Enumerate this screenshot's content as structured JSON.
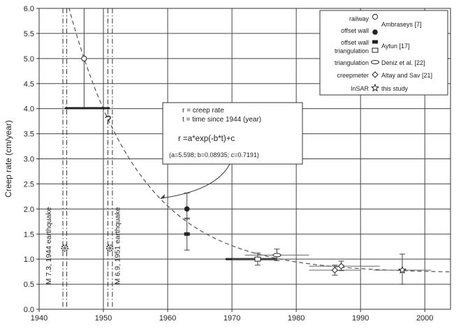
{
  "chart_data": {
    "type": "scatter",
    "ylabel": "Creep rate (cm/year)",
    "xlim": [
      1940,
      2004
    ],
    "ylim": [
      0,
      6
    ],
    "grid": true,
    "legend_position": "top-right",
    "x_ticks": [
      "1940",
      "1950",
      "1960",
      "1970",
      "1980",
      "1990",
      "2000"
    ],
    "y_ticks": [
      "0.0",
      "0.5",
      "1.0",
      "1.5",
      "2.0",
      "2.5",
      "3.0",
      "3.5",
      "4.0",
      "4.5",
      "5.0",
      "5.5",
      "6.0"
    ],
    "legend": [
      {
        "left": "railway",
        "right": "",
        "marker": "open-circle"
      },
      {
        "left": "offset wall",
        "right": "Ambraseys [7]",
        "marker": "filled-circle"
      },
      {
        "left": "offset wall",
        "right": "Aytun [17]",
        "marker": "filled-rect"
      },
      {
        "left": "triangulation",
        "right": "",
        "marker": "open-rect"
      },
      {
        "left": "triangulation",
        "right": "Deniz et al. [22]",
        "marker": "open-ellipse"
      },
      {
        "left": "creepmeter",
        "right": "Altay and Sav [21]",
        "marker": "open-diamond"
      },
      {
        "left": "InSAR",
        "right": "this study",
        "marker": "star"
      }
    ],
    "fit": {
      "a": 5.598,
      "b": 0.08935,
      "c": 0.7191,
      "t0": 1944
    },
    "series": [
      {
        "marker": "open-circle",
        "points": [
          {
            "x": 1947,
            "y": 5.0,
            "err_low": 4.0,
            "err_high": 6.0
          }
        ]
      },
      {
        "marker": "filled-circle",
        "points": [
          {
            "x": 1963,
            "y": 2.0,
            "err_low": 1.8,
            "err_high": 2.32
          }
        ]
      },
      {
        "marker": "filled-rect",
        "points": [
          {
            "x": 1963,
            "y": 1.5,
            "err_low": 1.18,
            "err_high": 1.82
          },
          {
            "x": 1947,
            "y": 4.01,
            "x_from": 1944,
            "x_to": 1951
          },
          {
            "x": 1970,
            "y": 1.0,
            "x_from": 1969,
            "x_to": 1977
          }
        ]
      },
      {
        "marker": "open-rect",
        "points": [
          {
            "x": 1974,
            "y": 1.0,
            "err_low": 0.88,
            "err_high": 1.12,
            "x_from": 1970,
            "x_to": 1977
          }
        ]
      },
      {
        "marker": "open-ellipse",
        "points": [
          {
            "x": 1977,
            "y": 1.08,
            "err_low": 0.97,
            "err_high": 1.2,
            "x_from": 1972,
            "x_to": 1982
          }
        ]
      },
      {
        "marker": "open-diamond",
        "points": [
          {
            "x": 1986,
            "y": 0.78,
            "err_low": 0.68,
            "err_high": 0.88,
            "x_from": 1982,
            "x_to": 1990
          },
          {
            "x": 1987,
            "y": 0.86,
            "err_low": 0.77,
            "err_high": 0.96,
            "x_from": 1982,
            "x_to": 1993
          }
        ]
      },
      {
        "marker": "star",
        "points": [
          {
            "x": 1944,
            "y": 1.22
          },
          {
            "x": 1951,
            "y": 1.22
          },
          {
            "x": 1996.5,
            "y": 0.78,
            "err_low": 0.5,
            "err_high": 1.1,
            "x_from": 1992,
            "x_to": 2001
          }
        ]
      }
    ],
    "earthquakes": [
      {
        "x": 1944,
        "label": "M 7.3, 1944 earthquake"
      },
      {
        "x": 1951,
        "label": "M 6.9, 1951 earthquake"
      }
    ],
    "annotations": {
      "question_mark": "?",
      "box_line1": "r = creep rate",
      "box_line2": "t = time since 1944 (year)",
      "box_formula": "r =a*exp(-b*t)+c",
      "box_params": "(a=5.598; b=0.08935; c=0.7191)"
    }
  }
}
